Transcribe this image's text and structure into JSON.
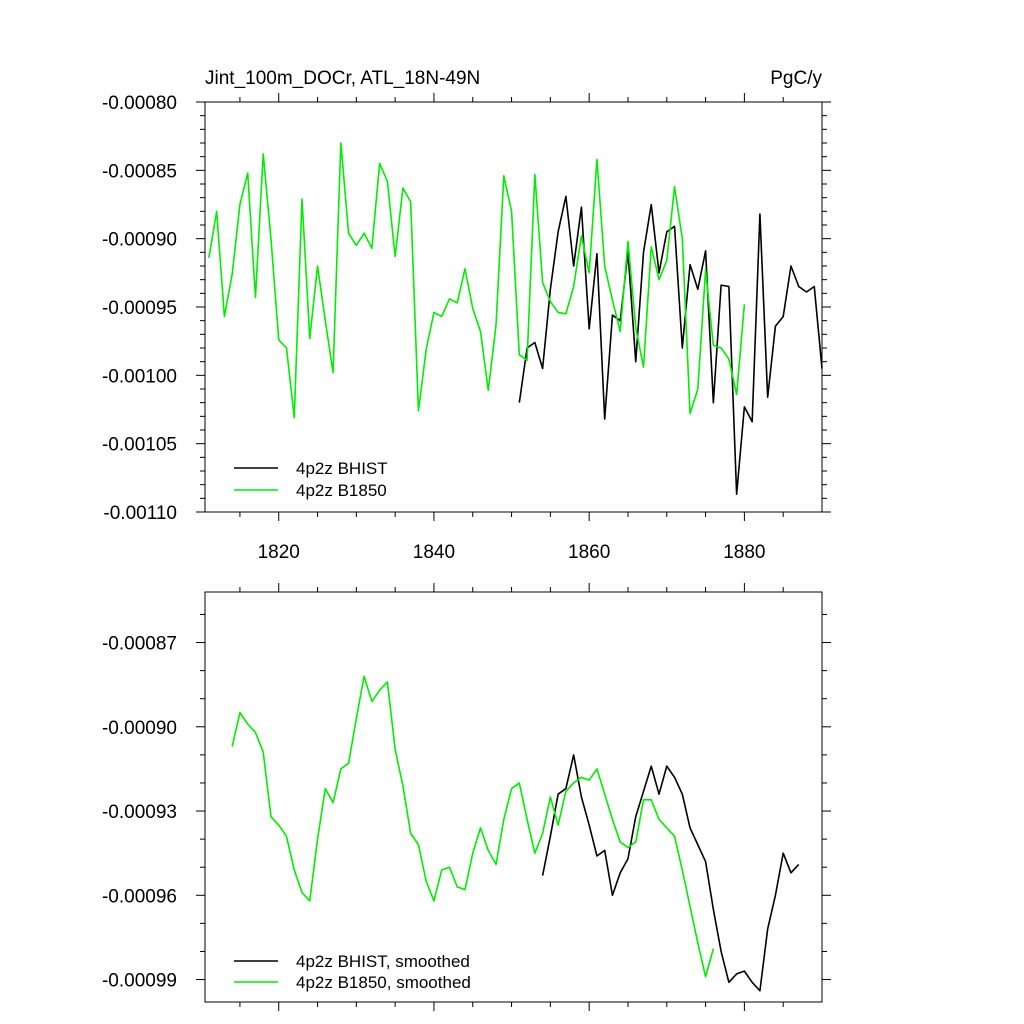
{
  "colors": {
    "bhist": "#000000",
    "b1850": "#00ee00",
    "axis": "#000000"
  },
  "chart_data": [
    {
      "type": "line",
      "title": "Jint_100m_DOCr, ATL_18N-49N",
      "units": "PgC/y",
      "xlim": [
        1810.5,
        1890
      ],
      "ylim": [
        -0.0011,
        -0.0008
      ],
      "xticks": [
        1820,
        1840,
        1860,
        1880
      ],
      "xtick_labels": [
        "1820",
        "1840",
        "1860",
        "1880"
      ],
      "yticks": [
        -0.0008,
        -0.00085,
        -0.0009,
        -0.00095,
        -0.001,
        -0.00105,
        -0.0011
      ],
      "ytick_labels": [
        "-0.00080",
        "-0.00085",
        "-0.00090",
        "-0.00095",
        "-0.00100",
        "-0.00105",
        "-0.00110"
      ],
      "legend": "bottom-left",
      "series": [
        {
          "name": "4p2z BHIST",
          "color_key": "bhist",
          "x_start": 1851,
          "x_step": 1,
          "values": [
            -0.00102,
            -0.00098,
            -0.000976,
            -0.000995,
            -0.000937,
            -0.000895,
            -0.000869,
            -0.00092,
            -0.000877,
            -0.000966,
            -0.000911,
            -0.001032,
            -0.000956,
            -0.00096,
            -0.00091,
            -0.00099,
            -0.00091,
            -0.000875,
            -0.000925,
            -0.000895,
            -0.000891,
            -0.00098,
            -0.000919,
            -0.000937,
            -0.000909,
            -0.00102,
            -0.000934,
            -0.000935,
            -0.001087,
            -0.001023,
            -0.001034,
            -0.000882,
            -0.001016,
            -0.000964,
            -0.000957,
            -0.00092,
            -0.000935,
            -0.000939,
            -0.000935,
            -0.000995
          ]
        },
        {
          "name": "4p2z B1850",
          "color_key": "b1850",
          "x_start": 1811,
          "x_step": 1,
          "values": [
            -0.000914,
            -0.00088,
            -0.000957,
            -0.000926,
            -0.000875,
            -0.000852,
            -0.000943,
            -0.000838,
            -0.0009,
            -0.000974,
            -0.00098,
            -0.001031,
            -0.000871,
            -0.000973,
            -0.00092,
            -0.00096,
            -0.000998,
            -0.00083,
            -0.000896,
            -0.000905,
            -0.000896,
            -0.000907,
            -0.000845,
            -0.000858,
            -0.000913,
            -0.000863,
            -0.000873,
            -0.001026,
            -0.000981,
            -0.000954,
            -0.000957,
            -0.000944,
            -0.000947,
            -0.000922,
            -0.000951,
            -0.000968,
            -0.001011,
            -0.000963,
            -0.000854,
            -0.00088,
            -0.000985,
            -0.000989,
            -0.000853,
            -0.000932,
            -0.000946,
            -0.000954,
            -0.000955,
            -0.000935,
            -0.000898,
            -0.000925,
            -0.000842,
            -0.00092,
            -0.000945,
            -0.000968,
            -0.000902,
            -0.000965,
            -0.000994,
            -0.000906,
            -0.00093,
            -0.000916,
            -0.000862,
            -0.0009,
            -0.001028,
            -0.00101,
            -0.000923,
            -0.000978,
            -0.00098,
            -0.000988,
            -0.001014,
            -0.000948
          ]
        }
      ]
    },
    {
      "type": "line",
      "xlim": [
        1810.5,
        1890
      ],
      "ylim": [
        -0.000998,
        -0.000852
      ],
      "xticks": [
        1820,
        1840,
        1860,
        1880
      ],
      "yticks": [
        -0.00087,
        -0.0009,
        -0.00093,
        -0.00096,
        -0.00099
      ],
      "ytick_labels": [
        "-0.00087",
        "-0.00090",
        "-0.00093",
        "-0.00096",
        "-0.00099"
      ],
      "legend": "bottom-left",
      "series": [
        {
          "name": "4p2z BHIST, smoothed",
          "color_key": "bhist",
          "x_start": 1854,
          "x_step": 1,
          "values": [
            -0.000953,
            -0.000939,
            -0.000924,
            -0.000922,
            -0.00091,
            -0.000925,
            -0.000935,
            -0.000946,
            -0.000944,
            -0.00096,
            -0.000952,
            -0.000947,
            -0.000932,
            -0.000923,
            -0.000914,
            -0.000924,
            -0.000914,
            -0.000918,
            -0.000924,
            -0.000936,
            -0.000942,
            -0.000948,
            -0.000965,
            -0.00098,
            -0.000991,
            -0.000988,
            -0.000987,
            -0.000991,
            -0.000994,
            -0.000972,
            -0.00096,
            -0.000945,
            -0.000952,
            -0.000949
          ]
        },
        {
          "name": "4p2z B1850, smoothed",
          "color_key": "b1850",
          "x_start": 1814,
          "x_step": 1,
          "values": [
            -0.000907,
            -0.000895,
            -0.000899,
            -0.000902,
            -0.000909,
            -0.000932,
            -0.000935,
            -0.000939,
            -0.000951,
            -0.000959,
            -0.000962,
            -0.00094,
            -0.000922,
            -0.000927,
            -0.000915,
            -0.000913,
            -0.000897,
            -0.000882,
            -0.000891,
            -0.000887,
            -0.000884,
            -0.000908,
            -0.000921,
            -0.000938,
            -0.000942,
            -0.000955,
            -0.000962,
            -0.000951,
            -0.00095,
            -0.000957,
            -0.000958,
            -0.000945,
            -0.000936,
            -0.000944,
            -0.000949,
            -0.000933,
            -0.000922,
            -0.00092,
            -0.000933,
            -0.000945,
            -0.000938,
            -0.000925,
            -0.000935,
            -0.000923,
            -0.00092,
            -0.000918,
            -0.000919,
            -0.000915,
            -0.000924,
            -0.000933,
            -0.000941,
            -0.000943,
            -0.000941,
            -0.000926,
            -0.000926,
            -0.000933,
            -0.000936,
            -0.000939,
            -0.000951,
            -0.000964,
            -0.000977,
            -0.000989,
            -0.000979
          ]
        }
      ]
    }
  ]
}
